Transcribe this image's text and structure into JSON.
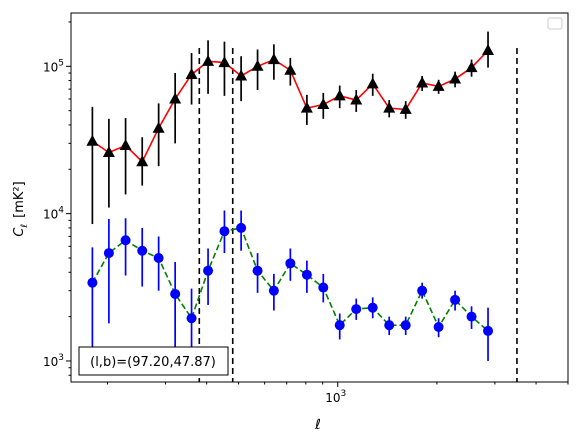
{
  "chart_data": {
    "type": "line",
    "title": "",
    "xlabel": "ℓ",
    "ylabel_main": "C",
    "ylabel_sub": "ℓ",
    "ylabel_unit": "[mK²]",
    "xscale": "log",
    "yscale": "log",
    "xlim": [
      155,
      5000
    ],
    "ylim": [
      720,
      230000
    ],
    "x_ticks": [
      {
        "value": 1000,
        "base": "10",
        "exp": "3"
      }
    ],
    "y_ticks": [
      {
        "value": 1000,
        "base": "10",
        "exp": "3"
      },
      {
        "value": 10000,
        "base": "10",
        "exp": "4"
      },
      {
        "value": 100000,
        "base": "10",
        "exp": "5"
      }
    ],
    "grid": false,
    "legend": "upper right, empty",
    "annotation": "(l,b)=(97.20,47.87)",
    "vlines": [
      380,
      480,
      3500
    ],
    "series": [
      {
        "color": "#ff0000",
        "linestyle": "solid",
        "marker": "triangle",
        "marker_color": "#000000",
        "errcolor": "#000000",
        "points": [
          {
            "x": 180,
            "y": 31000,
            "lo": 8500,
            "hi": 53000
          },
          {
            "x": 202,
            "y": 26000,
            "lo": 11000,
            "hi": 44000
          },
          {
            "x": 227,
            "y": 29000,
            "lo": 13500,
            "hi": 44500
          },
          {
            "x": 255,
            "y": 22500,
            "lo": 15500,
            "hi": 33000
          },
          {
            "x": 286,
            "y": 38000,
            "lo": 21000,
            "hi": 56000
          },
          {
            "x": 321,
            "y": 60000,
            "lo": 30000,
            "hi": 90000
          },
          {
            "x": 360,
            "y": 88000,
            "lo": 55000,
            "hi": 123000
          },
          {
            "x": 404,
            "y": 108000,
            "lo": 65000,
            "hi": 150000
          },
          {
            "x": 453,
            "y": 106000,
            "lo": 63000,
            "hi": 147000
          },
          {
            "x": 509,
            "y": 86000,
            "lo": 58000,
            "hi": 117000
          },
          {
            "x": 571,
            "y": 100000,
            "lo": 69000,
            "hi": 130000
          },
          {
            "x": 640,
            "y": 111000,
            "lo": 81000,
            "hi": 141000
          },
          {
            "x": 718,
            "y": 94000,
            "lo": 74000,
            "hi": 114000
          },
          {
            "x": 806,
            "y": 52000,
            "lo": 40000,
            "hi": 64000
          },
          {
            "x": 904,
            "y": 55000,
            "lo": 44000,
            "hi": 66000
          },
          {
            "x": 1014,
            "y": 63000,
            "lo": 52000,
            "hi": 74000
          },
          {
            "x": 1138,
            "y": 59000,
            "lo": 49000,
            "hi": 69000
          },
          {
            "x": 1277,
            "y": 76000,
            "lo": 63000,
            "hi": 89000
          },
          {
            "x": 1433,
            "y": 52000,
            "lo": 45000,
            "hi": 59000
          },
          {
            "x": 1608,
            "y": 51000,
            "lo": 44000,
            "hi": 58000
          },
          {
            "x": 1804,
            "y": 77000,
            "lo": 68000,
            "hi": 86000
          },
          {
            "x": 2024,
            "y": 73000,
            "lo": 65000,
            "hi": 81000
          },
          {
            "x": 2271,
            "y": 82000,
            "lo": 72000,
            "hi": 92000
          },
          {
            "x": 2548,
            "y": 98000,
            "lo": 85000,
            "hi": 111000
          },
          {
            "x": 2859,
            "y": 128000,
            "lo": 98000,
            "hi": 172000
          }
        ]
      },
      {
        "color": "#008000",
        "linestyle": "dashed",
        "marker": "circle",
        "marker_color": "#0000ff",
        "errcolor": "#0000ff",
        "points": [
          {
            "x": 180,
            "y": 3400,
            "lo": 1000,
            "hi": 5900
          },
          {
            "x": 202,
            "y": 5400,
            "lo": 1800,
            "hi": 9200
          },
          {
            "x": 227,
            "y": 6600,
            "lo": 3800,
            "hi": 9300
          },
          {
            "x": 255,
            "y": 5600,
            "lo": 3200,
            "hi": 8000
          },
          {
            "x": 286,
            "y": 5000,
            "lo": 3000,
            "hi": 7000
          },
          {
            "x": 321,
            "y": 2850,
            "lo": 1000,
            "hi": 4700
          },
          {
            "x": 360,
            "y": 1950,
            "lo": 800,
            "hi": 3100
          },
          {
            "x": 404,
            "y": 4100,
            "lo": 2400,
            "hi": 5800
          },
          {
            "x": 453,
            "y": 7600,
            "lo": 5400,
            "hi": 10500
          },
          {
            "x": 509,
            "y": 8000,
            "lo": 5600,
            "hi": 10500
          },
          {
            "x": 571,
            "y": 4100,
            "lo": 2900,
            "hi": 5400
          },
          {
            "x": 640,
            "y": 3000,
            "lo": 2200,
            "hi": 3900
          },
          {
            "x": 718,
            "y": 4600,
            "lo": 3500,
            "hi": 5800
          },
          {
            "x": 806,
            "y": 3850,
            "lo": 2900,
            "hi": 4800
          },
          {
            "x": 904,
            "y": 3150,
            "lo": 2500,
            "hi": 3900
          },
          {
            "x": 1014,
            "y": 1750,
            "lo": 1400,
            "hi": 2100
          },
          {
            "x": 1138,
            "y": 2250,
            "lo": 1900,
            "hi": 2650
          },
          {
            "x": 1277,
            "y": 2300,
            "lo": 1950,
            "hi": 2700
          },
          {
            "x": 1433,
            "y": 1750,
            "lo": 1500,
            "hi": 2000
          },
          {
            "x": 1608,
            "y": 1750,
            "lo": 1500,
            "hi": 2000
          },
          {
            "x": 1804,
            "y": 3000,
            "lo": 2650,
            "hi": 3400
          },
          {
            "x": 2024,
            "y": 1700,
            "lo": 1450,
            "hi": 1950
          },
          {
            "x": 2271,
            "y": 2600,
            "lo": 2200,
            "hi": 3000
          },
          {
            "x": 2548,
            "y": 2000,
            "lo": 1650,
            "hi": 2350
          },
          {
            "x": 2859,
            "y": 1600,
            "lo": 1000,
            "hi": 2300
          }
        ]
      }
    ]
  }
}
